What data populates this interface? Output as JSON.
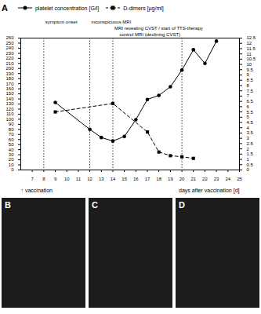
{
  "chart_data": {
    "type": "line",
    "panel": "A",
    "x_label": "days after vaccination [d]",
    "xlim": [
      6,
      25
    ],
    "xticks": [
      7,
      8,
      9,
      10,
      11,
      12,
      13,
      14,
      15,
      16,
      17,
      18,
      19,
      20,
      21,
      22,
      23,
      24,
      25
    ],
    "ylim": [
      0,
      260
    ],
    "yticks": [
      0,
      10,
      20,
      30,
      40,
      50,
      60,
      70,
      80,
      90,
      100,
      110,
      120,
      130,
      140,
      150,
      160,
      170,
      180,
      190,
      200,
      210,
      220,
      230,
      240,
      250,
      260
    ],
    "y2lim": [
      0,
      12.5
    ],
    "y2ticks": [
      0,
      0.5,
      1,
      1.5,
      2,
      2.5,
      3,
      3.5,
      4,
      4.5,
      5,
      5.5,
      6,
      6.5,
      7,
      7.5,
      8,
      8.5,
      9,
      9.5,
      10,
      10.5,
      11,
      11.5,
      12,
      12.5
    ],
    "legend": "top",
    "series": [
      {
        "name": "platelet concentration [G/l]",
        "color": "#000000",
        "marker": "circle",
        "line_style": "solid",
        "x": [
          9,
          12,
          13,
          14,
          15,
          16,
          17,
          18,
          19,
          20,
          21,
          22,
          23
        ],
        "values": [
          133,
          80,
          64,
          57,
          66,
          99,
          139,
          147,
          164,
          197,
          237,
          210,
          254
        ]
      },
      {
        "name": "D-dimers [µg/ml]",
        "color": "#000000",
        "marker": "square",
        "line_style": "dashed",
        "axis": "y2",
        "x": [
          9,
          14,
          17,
          18,
          19,
          20,
          21
        ],
        "values": [
          5.5,
          6.3,
          3.6,
          1.7,
          1.35,
          1.25,
          1.1
        ]
      }
    ],
    "events": [
      {
        "x": 8,
        "label": "symptom onset"
      },
      {
        "x": 12,
        "label": "inconspicuous MRI"
      },
      {
        "x": 14,
        "label": "MRI revealing CVST / start of TTS-therapy"
      },
      {
        "x": 20,
        "label": "control MRI (declining CVST)"
      }
    ],
    "vaccination": {
      "x": 6,
      "label": "↑ vaccination"
    },
    "image_panels": [
      "B",
      "C",
      "D"
    ]
  }
}
